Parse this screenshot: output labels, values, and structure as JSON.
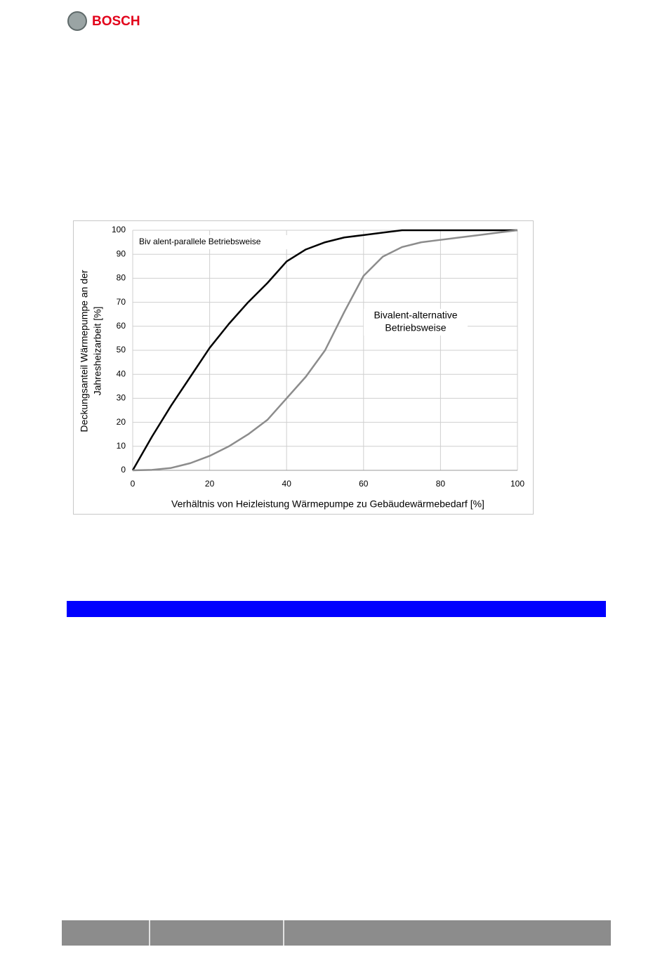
{
  "header": {
    "logo": "BOSCH"
  },
  "chart_data": {
    "type": "line",
    "x": [
      0,
      5,
      10,
      15,
      20,
      25,
      30,
      35,
      40,
      45,
      50,
      55,
      60,
      65,
      70,
      75,
      80,
      85,
      90,
      95,
      100
    ],
    "series": [
      {
        "color": "#000000",
        "values": [
          0,
          14,
          27,
          39,
          51,
          61,
          70,
          78,
          87,
          92,
          95,
          97,
          98,
          99,
          100,
          100,
          100,
          100,
          100,
          100,
          100
        ]
      },
      {
        "color": "#8c8c8c",
        "values": [
          0,
          0.2,
          1,
          3,
          6,
          10,
          15,
          21,
          30,
          39,
          50,
          66,
          81,
          89,
          93,
          95,
          96,
          97,
          98,
          99,
          100
        ]
      }
    ],
    "xlim": [
      0,
      100
    ],
    "xticks": [
      0,
      20,
      40,
      60,
      80,
      100
    ],
    "ylim": [
      0,
      100
    ],
    "yticks": [
      0,
      10,
      20,
      30,
      40,
      50,
      60,
      70,
      80,
      90,
      100
    ],
    "grid": true,
    "y_label": [
      "Deckungsanteil Wärmepumpe an der",
      "Jahresheizarbeit [%]"
    ],
    "x_label": "Verhältnis von Heizleistung Wärmepumpe zu Gebäudewärmebedarf [%]",
    "annotations": [
      "Biv alent-parallele Betriebsweise",
      "Bivalent-alternative",
      "Betriebsweise"
    ]
  }
}
